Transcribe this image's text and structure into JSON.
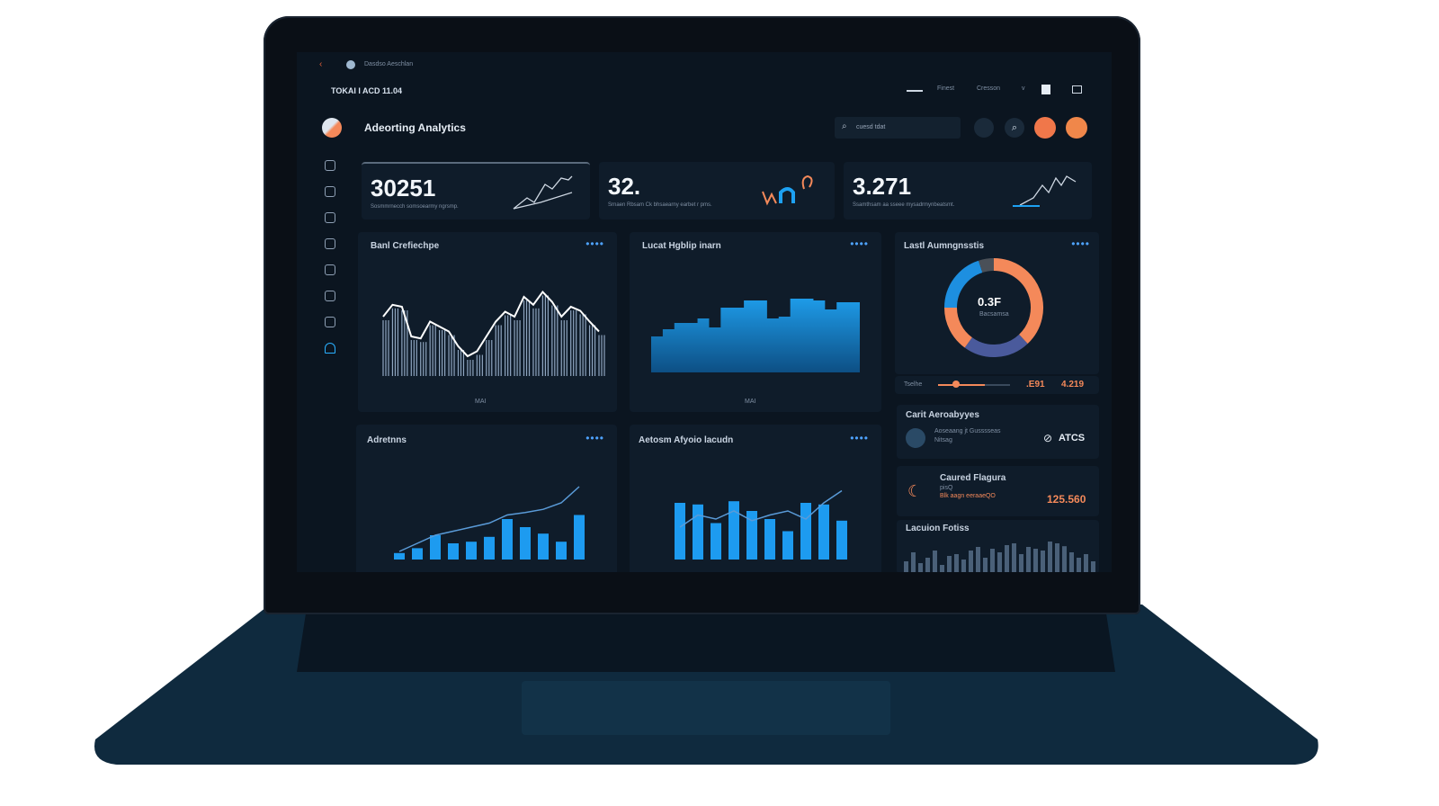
{
  "browser": {
    "tab_title": "Dasdso Aeschlan"
  },
  "topbar": {
    "left_text": "TOKAI I ACD 11.04",
    "menu": [
      "Finest",
      "Cresson"
    ],
    "chevron": "v"
  },
  "header": {
    "title": "Adeorting Analytics",
    "search_placeholder": "cuesd tdat"
  },
  "sidebar": {
    "icons": [
      "home-icon",
      "inbox-icon",
      "chat-icon",
      "user-search-icon",
      "cloud-icon",
      "folder-icon",
      "file-icon",
      "arch-icon"
    ],
    "active_index": 7
  },
  "kpis": [
    {
      "value": "30251",
      "caption": "Sosmmrnecch somsoearmy ngrsmp."
    },
    {
      "value": "32.",
      "caption": "Srnaen Rbsam Ck bhsaearny earbet r pms."
    },
    {
      "value": "3.271",
      "caption": "Ssamthsam aa sseee mysadrmynbeatsmt."
    }
  ],
  "panels": {
    "p1": {
      "title": "Banl Crefiechpe",
      "xlabel": "MAI",
      "values": [
        60,
        72,
        70,
        40,
        38,
        55,
        50,
        45,
        30,
        20,
        25,
        40,
        55,
        65,
        60,
        80,
        72,
        85,
        75,
        60,
        70,
        66,
        55,
        45
      ]
    },
    "p2": {
      "title": "Lucat Hgblip inarn",
      "xlabel": "MAI",
      "values": [
        40,
        48,
        55,
        55,
        60,
        50,
        72,
        72,
        80,
        80,
        60,
        62,
        82,
        82,
        80,
        70,
        78,
        78
      ]
    },
    "p3": {
      "title": "Lastl Aumngnsstis",
      "center_value": "0.3F",
      "center_caption": "Bacsamsa",
      "slices": [
        {
          "value": 38,
          "color": "#f4895a"
        },
        {
          "value": 22,
          "color": "#4a5a9c"
        },
        {
          "value": 15,
          "color": "#f4895a"
        },
        {
          "value": 20,
          "color": "#1d8fe0"
        },
        {
          "value": 5,
          "color": "#4a5058"
        }
      ],
      "slider_label": "Tselhe",
      "slider_fraction": 0.25,
      "stat1": ".E91",
      "stat2": "4.219"
    },
    "p4": {
      "title": "Adretnns",
      "bars": [
        8,
        14,
        30,
        20,
        22,
        28,
        50,
        40,
        32,
        22,
        55
      ],
      "line": [
        10,
        20,
        30,
        35,
        40,
        45,
        55,
        58,
        62,
        70,
        90
      ]
    },
    "p5": {
      "title": "Aetosm Afyoio lacudn",
      "bars": [
        70,
        68,
        45,
        72,
        60,
        50,
        35,
        70,
        68,
        48
      ],
      "line": [
        40,
        55,
        50,
        60,
        48,
        55,
        60,
        50,
        70,
        85
      ]
    }
  },
  "side_cards": [
    {
      "title": "Carit Aeroabyyes",
      "sub1": "Aoseaang jt Gusssseas",
      "sub2": "Nitsag",
      "stat": "ATCS"
    },
    {
      "title": "Caured Flagura",
      "sub1": "pisQ",
      "sub2": "Blk aagn eeraaeQO",
      "stat": "125.560"
    },
    {
      "title": "Lacuion Fotiss",
      "bars": [
        30,
        55,
        25,
        40,
        60,
        20,
        45,
        50,
        35,
        60,
        70,
        40,
        65,
        55,
        75,
        80,
        50,
        70,
        65,
        60,
        85,
        80,
        72,
        55,
        40,
        50,
        30
      ]
    }
  ],
  "colors": {
    "accent": "#1d9bf0",
    "orange": "#f4895a",
    "bg": "#0b1520",
    "card": "#0f1c2a"
  }
}
